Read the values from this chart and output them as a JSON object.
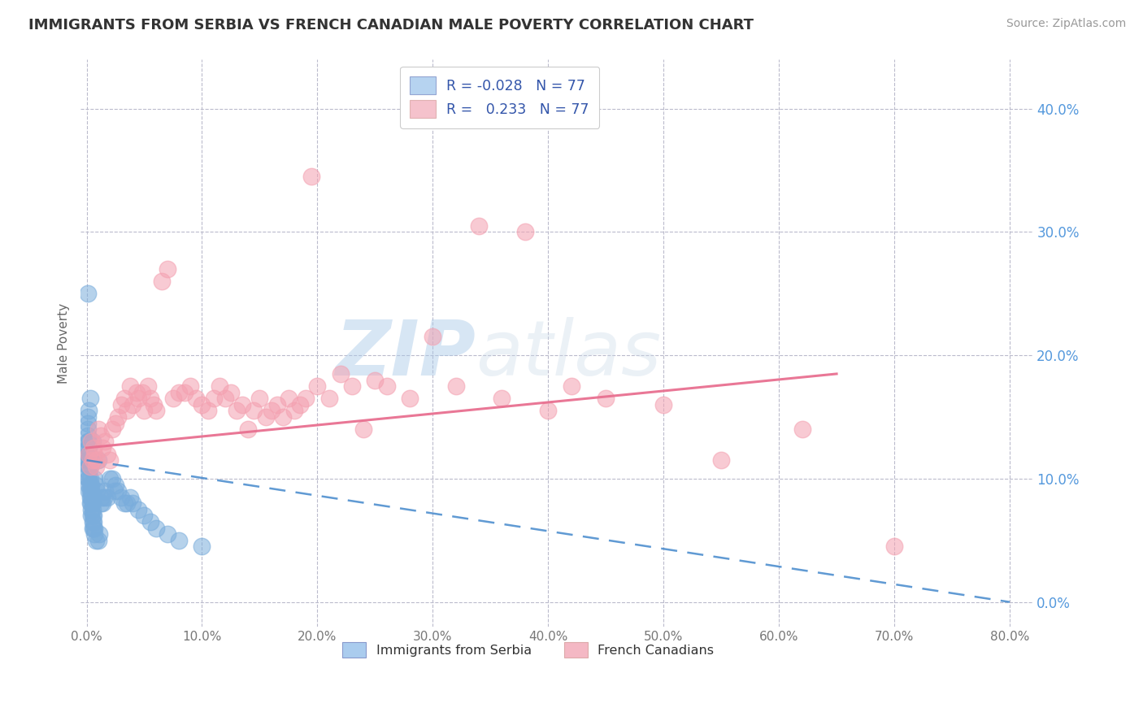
{
  "title": "IMMIGRANTS FROM SERBIA VS FRENCH CANADIAN MALE POVERTY CORRELATION CHART",
  "source_text": "Source: ZipAtlas.com",
  "ylabel": "Male Poverty",
  "xlim": [
    -0.005,
    0.82
  ],
  "ylim": [
    -0.02,
    0.44
  ],
  "xticks": [
    0.0,
    0.1,
    0.2,
    0.3,
    0.4,
    0.5,
    0.6,
    0.7,
    0.8
  ],
  "yticks": [
    0.0,
    0.1,
    0.2,
    0.3,
    0.4
  ],
  "r_blue": -0.028,
  "r_pink": 0.233,
  "n_blue": 77,
  "n_pink": 77,
  "blue_color": "#7AADDC",
  "pink_color": "#F4A0B0",
  "blue_line_color": "#4488CC",
  "pink_line_color": "#E87090",
  "watermark_zip": "ZIP",
  "watermark_atlas": "atlas",
  "background_color": "#FFFFFF",
  "grid_color": "#BBBBCC",
  "blue_x": [
    0.001,
    0.001,
    0.001,
    0.001,
    0.001,
    0.001,
    0.001,
    0.001,
    0.001,
    0.001,
    0.002,
    0.002,
    0.002,
    0.002,
    0.002,
    0.002,
    0.002,
    0.002,
    0.002,
    0.002,
    0.003,
    0.003,
    0.003,
    0.003,
    0.003,
    0.003,
    0.003,
    0.003,
    0.004,
    0.004,
    0.004,
    0.004,
    0.004,
    0.004,
    0.005,
    0.005,
    0.005,
    0.005,
    0.005,
    0.005,
    0.006,
    0.006,
    0.006,
    0.006,
    0.007,
    0.007,
    0.007,
    0.008,
    0.008,
    0.009,
    0.01,
    0.01,
    0.011,
    0.012,
    0.013,
    0.014,
    0.015,
    0.016,
    0.018,
    0.02,
    0.022,
    0.024,
    0.025,
    0.027,
    0.03,
    0.033,
    0.035,
    0.038,
    0.04,
    0.045,
    0.05,
    0.055,
    0.06,
    0.07,
    0.08,
    0.1,
    0.001
  ],
  "blue_y": [
    0.1,
    0.11,
    0.115,
    0.12,
    0.125,
    0.13,
    0.135,
    0.14,
    0.145,
    0.15,
    0.09,
    0.095,
    0.1,
    0.105,
    0.11,
    0.115,
    0.12,
    0.125,
    0.13,
    0.155,
    0.08,
    0.085,
    0.09,
    0.095,
    0.1,
    0.11,
    0.115,
    0.165,
    0.07,
    0.075,
    0.08,
    0.085,
    0.09,
    0.095,
    0.06,
    0.065,
    0.07,
    0.075,
    0.08,
    0.13,
    0.06,
    0.065,
    0.07,
    0.115,
    0.055,
    0.06,
    0.1,
    0.05,
    0.095,
    0.09,
    0.05,
    0.115,
    0.055,
    0.08,
    0.085,
    0.08,
    0.085,
    0.09,
    0.085,
    0.1,
    0.1,
    0.09,
    0.095,
    0.09,
    0.085,
    0.08,
    0.08,
    0.085,
    0.08,
    0.075,
    0.07,
    0.065,
    0.06,
    0.055,
    0.05,
    0.045,
    0.25
  ],
  "pink_x": [
    0.002,
    0.003,
    0.004,
    0.005,
    0.006,
    0.007,
    0.008,
    0.009,
    0.01,
    0.012,
    0.014,
    0.016,
    0.018,
    0.02,
    0.022,
    0.025,
    0.027,
    0.03,
    0.033,
    0.035,
    0.038,
    0.04,
    0.043,
    0.045,
    0.048,
    0.05,
    0.053,
    0.055,
    0.058,
    0.06,
    0.065,
    0.07,
    0.075,
    0.08,
    0.085,
    0.09,
    0.095,
    0.1,
    0.105,
    0.11,
    0.115,
    0.12,
    0.125,
    0.13,
    0.135,
    0.14,
    0.145,
    0.15,
    0.155,
    0.16,
    0.165,
    0.17,
    0.175,
    0.18,
    0.185,
    0.19,
    0.195,
    0.2,
    0.21,
    0.22,
    0.23,
    0.24,
    0.25,
    0.26,
    0.28,
    0.3,
    0.32,
    0.34,
    0.36,
    0.38,
    0.4,
    0.42,
    0.45,
    0.5,
    0.55,
    0.62,
    0.7
  ],
  "pink_y": [
    0.12,
    0.11,
    0.13,
    0.115,
    0.125,
    0.12,
    0.11,
    0.115,
    0.14,
    0.135,
    0.125,
    0.13,
    0.12,
    0.115,
    0.14,
    0.145,
    0.15,
    0.16,
    0.165,
    0.155,
    0.175,
    0.16,
    0.17,
    0.165,
    0.17,
    0.155,
    0.175,
    0.165,
    0.16,
    0.155,
    0.26,
    0.27,
    0.165,
    0.17,
    0.17,
    0.175,
    0.165,
    0.16,
    0.155,
    0.165,
    0.175,
    0.165,
    0.17,
    0.155,
    0.16,
    0.14,
    0.155,
    0.165,
    0.15,
    0.155,
    0.16,
    0.15,
    0.165,
    0.155,
    0.16,
    0.165,
    0.345,
    0.175,
    0.165,
    0.185,
    0.175,
    0.14,
    0.18,
    0.175,
    0.165,
    0.215,
    0.175,
    0.305,
    0.165,
    0.3,
    0.155,
    0.175,
    0.165,
    0.16,
    0.115,
    0.14,
    0.045
  ],
  "pink_line_x0": 0.0,
  "pink_line_x1": 0.65,
  "pink_line_y0": 0.125,
  "pink_line_y1": 0.185,
  "blue_line_x0": 0.0,
  "blue_line_x1": 0.8,
  "blue_line_y0": 0.115,
  "blue_line_y1": 0.0
}
